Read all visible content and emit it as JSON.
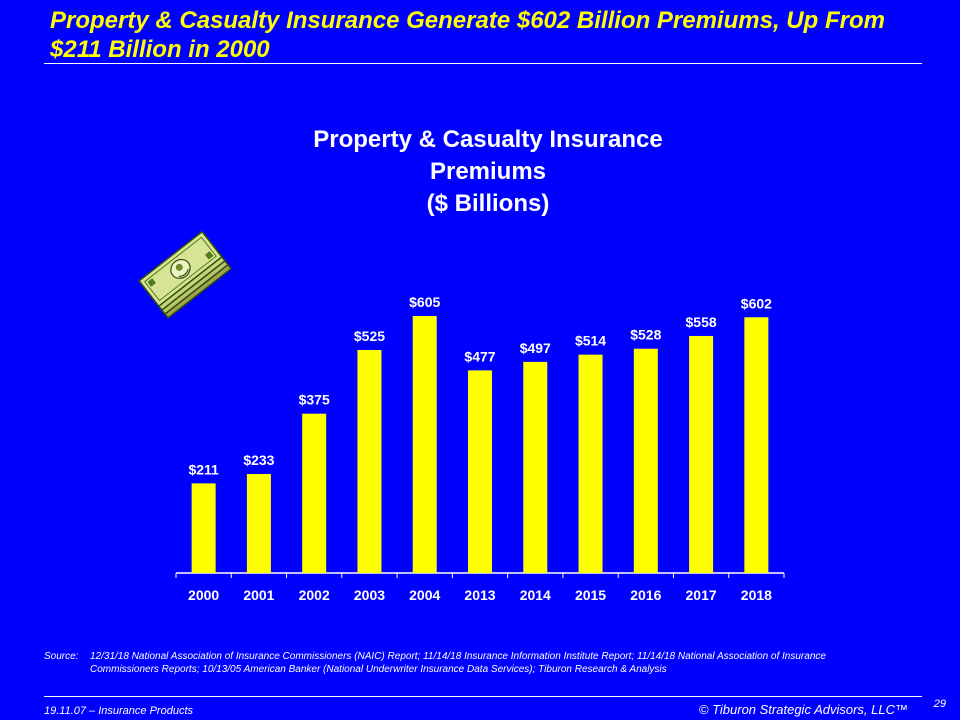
{
  "slide": {
    "headline": "Property & Casualty Insurance Generate $602 Billion Premiums, Up From $211 Billion in 2000",
    "footer_left": "19.11.07 – Insurance Products",
    "footer_right": "© Tiburon Strategic Advisors, LLC™",
    "page_number": "29",
    "source_label": "Source:",
    "source_text": "12/31/18 National Association of Insurance Commissioners (NAIC) Report; 11/14/18 Insurance Information Institute Report; 11/14/18 National Association of Insurance Commissioners Reports; 10/13/05 American Banker (National Underwriter Insurance Data Services); Tiburon Research & Analysis"
  },
  "chart_data": {
    "type": "bar",
    "title_lines": [
      "Property & Casualty Insurance",
      "Premiums",
      "($ Billions)"
    ],
    "categories": [
      "2000",
      "2001",
      "2002",
      "2003",
      "2004",
      "2013",
      "2014",
      "2015",
      "2016",
      "2017",
      "2018"
    ],
    "values": [
      211,
      233,
      375,
      525,
      605,
      477,
      497,
      514,
      528,
      558,
      602
    ],
    "data_labels": [
      "$211",
      "$233",
      "$375",
      "$525",
      "$605",
      "$477",
      "$497",
      "$514",
      "$528",
      "$558",
      "$602"
    ],
    "ylim": [
      0,
      605
    ],
    "grid": false,
    "bar_color": "#ffff00",
    "background_color": "#0000ff",
    "text_color": "#ffffff"
  },
  "icons": {
    "decoration": "money-stack-icon"
  }
}
